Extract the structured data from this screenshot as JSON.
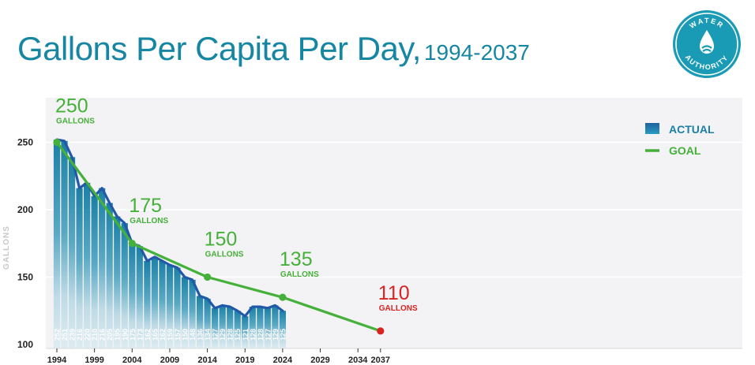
{
  "title": {
    "main": "Gallons Per Capita Per Day,",
    "range": "1994-2037"
  },
  "logo": {
    "top_text": "WATER",
    "bottom_text": "AUTHORITY"
  },
  "colors": {
    "actual": "#1b7fa3",
    "actual_line": "#2159a8",
    "goal": "#45b03a",
    "goal_final": "#d92323",
    "title": "#1686a3",
    "plot_bg": "#f3f2f4"
  },
  "chart_data": {
    "type": "bar",
    "title": "Gallons Per Capita Per Day, 1994-2037",
    "xlabel": "",
    "ylabel": "GALLONS",
    "ylim": [
      100,
      270
    ],
    "xlim": [
      1993.5,
      2039
    ],
    "y_ticks": [
      100,
      150,
      200,
      250
    ],
    "x_ticks": [
      1994,
      1999,
      2004,
      2009,
      2014,
      2019,
      2024,
      2029,
      2034,
      2037
    ],
    "legend": {
      "position": "top-right",
      "items": [
        {
          "name": "ACTUAL",
          "kind": "bar"
        },
        {
          "name": "GOAL",
          "kind": "line"
        }
      ]
    },
    "series": [
      {
        "name": "ACTUAL",
        "type": "bar",
        "years": [
          1994,
          1995,
          1996,
          1997,
          1998,
          1999,
          2000,
          2001,
          2002,
          2003,
          2004,
          2005,
          2006,
          2007,
          2008,
          2009,
          2010,
          2011,
          2012,
          2013,
          2014,
          2015,
          2016,
          2017,
          2018,
          2019,
          2020,
          2021,
          2022,
          2023,
          2024
        ],
        "values": [
          252,
          251,
          239,
          216,
          220,
          210,
          216,
          205,
          195,
          190,
          175,
          173,
          162,
          165,
          162,
          159,
          157,
          150,
          148,
          136,
          134,
          127,
          129,
          128,
          125,
          121,
          128,
          128,
          127,
          129,
          125
        ]
      },
      {
        "name": "GOAL",
        "type": "line",
        "points": [
          {
            "x": 1994,
            "y": 250,
            "value_label": "250",
            "unit_label": "GALLONS",
            "final": false
          },
          {
            "x": 2004,
            "y": 175,
            "value_label": "175",
            "unit_label": "GALLONS",
            "final": false
          },
          {
            "x": 2014,
            "y": 150,
            "value_label": "150",
            "unit_label": "GALLONS",
            "final": false
          },
          {
            "x": 2024,
            "y": 135,
            "value_label": "135",
            "unit_label": "GALLONS",
            "final": false
          },
          {
            "x": 2037,
            "y": 110,
            "value_label": "110",
            "unit_label": "GALLONS",
            "final": true
          }
        ]
      }
    ]
  }
}
